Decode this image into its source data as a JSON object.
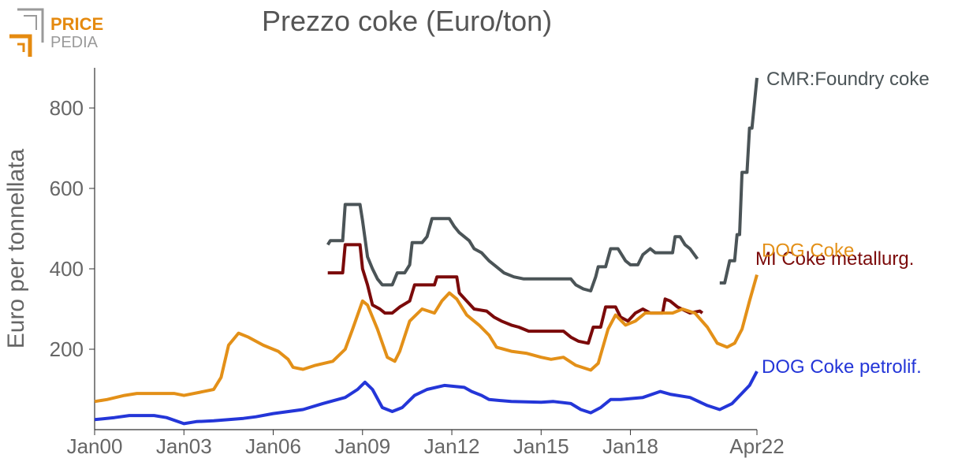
{
  "logo": {
    "line1": "PRICE",
    "line2": "PEDIA",
    "accent_color": "#e58a0f",
    "gray_color": "#9a9a9a"
  },
  "chart_data": {
    "type": "line",
    "title": "Prezzo coke (Euro/ton)",
    "xlabel": "",
    "ylabel": "Euro per tonnellata",
    "xlim": [
      "2000-01",
      "2022-04"
    ],
    "ylim": [
      0,
      900
    ],
    "x_ticks": [
      "Jan00",
      "Jan03",
      "Jan06",
      "Jan09",
      "Jan12",
      "Jan15",
      "Jan18",
      "Apr22"
    ],
    "y_ticks": [
      200,
      400,
      600,
      800
    ],
    "grid": false,
    "legend": "inline labels at series ends",
    "series": [
      {
        "name": "CMR:Foundry coke",
        "color": "#4b5457",
        "points": [
          [
            "2007-11",
            460
          ],
          [
            "2007-12",
            470
          ],
          [
            "2008-05",
            470
          ],
          [
            "2008-06",
            560
          ],
          [
            "2008-12",
            560
          ],
          [
            "2009-01",
            520
          ],
          [
            "2009-03",
            430
          ],
          [
            "2009-05",
            400
          ],
          [
            "2009-07",
            375
          ],
          [
            "2009-09",
            360
          ],
          [
            "2010-01",
            360
          ],
          [
            "2010-03",
            390
          ],
          [
            "2010-06",
            390
          ],
          [
            "2010-08",
            410
          ],
          [
            "2010-09",
            465
          ],
          [
            "2011-01",
            465
          ],
          [
            "2011-03",
            480
          ],
          [
            "2011-05",
            525
          ],
          [
            "2011-12",
            525
          ],
          [
            "2012-02",
            505
          ],
          [
            "2012-04",
            490
          ],
          [
            "2012-08",
            470
          ],
          [
            "2012-10",
            450
          ],
          [
            "2013-01",
            440
          ],
          [
            "2013-04",
            420
          ],
          [
            "2013-07",
            405
          ],
          [
            "2013-10",
            390
          ],
          [
            "2014-02",
            380
          ],
          [
            "2014-06",
            375
          ],
          [
            "2015-06",
            375
          ],
          [
            "2016-01",
            375
          ],
          [
            "2016-03",
            360
          ],
          [
            "2016-06",
            350
          ],
          [
            "2016-09",
            345
          ],
          [
            "2016-11",
            380
          ],
          [
            "2016-12",
            405
          ],
          [
            "2017-03",
            405
          ],
          [
            "2017-05",
            450
          ],
          [
            "2017-08",
            450
          ],
          [
            "2017-11",
            420
          ],
          [
            "2018-01",
            410
          ],
          [
            "2018-04",
            410
          ],
          [
            "2018-06",
            435
          ],
          [
            "2018-09",
            450
          ],
          [
            "2018-11",
            440
          ],
          [
            "2019-06",
            440
          ],
          [
            "2019-07",
            480
          ],
          [
            "2019-09",
            480
          ],
          [
            "2019-11",
            460
          ],
          [
            "2020-01",
            450
          ],
          [
            "2020-04",
            425
          ],
          null,
          [
            "2021-01",
            365
          ],
          [
            "2021-03",
            365
          ],
          [
            "2021-05",
            420
          ],
          [
            "2021-07",
            420
          ],
          [
            "2021-08",
            485
          ],
          [
            "2021-09",
            485
          ],
          [
            "2021-10",
            640
          ],
          [
            "2021-12",
            640
          ],
          [
            "2022-01",
            750
          ],
          [
            "2022-02",
            750
          ],
          [
            "2022-04",
            875
          ]
        ]
      },
      {
        "name": "MI Coke metallurg.",
        "color": "#7b0a0a",
        "points": [
          [
            "2007-11",
            390
          ],
          [
            "2008-05",
            390
          ],
          [
            "2008-06",
            460
          ],
          [
            "2008-12",
            460
          ],
          [
            "2009-01",
            400
          ],
          [
            "2009-03",
            360
          ],
          [
            "2009-05",
            310
          ],
          [
            "2009-08",
            300
          ],
          [
            "2009-10",
            290
          ],
          [
            "2010-01",
            290
          ],
          [
            "2010-04",
            305
          ],
          [
            "2010-08",
            320
          ],
          [
            "2010-10",
            360
          ],
          [
            "2011-06",
            360
          ],
          [
            "2011-07",
            380
          ],
          [
            "2012-03",
            380
          ],
          [
            "2012-04",
            340
          ],
          [
            "2012-07",
            320
          ],
          [
            "2012-10",
            300
          ],
          [
            "2013-03",
            295
          ],
          [
            "2013-06",
            280
          ],
          [
            "2013-09",
            270
          ],
          [
            "2014-01",
            260
          ],
          [
            "2014-04",
            255
          ],
          [
            "2014-08",
            245
          ],
          [
            "2015-10",
            245
          ],
          [
            "2016-01",
            230
          ],
          [
            "2016-04",
            220
          ],
          [
            "2016-08",
            215
          ],
          [
            "2016-10",
            255
          ],
          [
            "2017-01",
            255
          ],
          [
            "2017-03",
            305
          ],
          [
            "2017-07",
            305
          ],
          [
            "2017-09",
            280
          ],
          [
            "2017-12",
            270
          ],
          [
            "2018-03",
            290
          ],
          [
            "2018-06",
            300
          ],
          [
            "2018-09",
            290
          ],
          [
            "2019-02",
            290
          ],
          [
            "2019-03",
            325
          ],
          [
            "2019-05",
            320
          ],
          [
            "2019-08",
            305
          ],
          [
            "2020-01",
            290
          ],
          [
            "2020-05",
            295
          ],
          [
            "2020-06",
            290
          ]
        ]
      },
      {
        "name": "DOG Coke",
        "color": "#e39018",
        "points": [
          [
            "2000-01",
            70
          ],
          [
            "2000-06",
            75
          ],
          [
            "2001-01",
            85
          ],
          [
            "2001-06",
            90
          ],
          [
            "2002-01",
            90
          ],
          [
            "2002-09",
            90
          ],
          [
            "2003-01",
            85
          ],
          [
            "2003-09",
            95
          ],
          [
            "2004-01",
            100
          ],
          [
            "2004-04",
            130
          ],
          [
            "2004-07",
            210
          ],
          [
            "2004-11",
            240
          ],
          [
            "2005-03",
            230
          ],
          [
            "2005-09",
            210
          ],
          [
            "2006-03",
            195
          ],
          [
            "2006-07",
            175
          ],
          [
            "2006-09",
            155
          ],
          [
            "2007-01",
            150
          ],
          [
            "2007-06",
            160
          ],
          [
            "2008-01",
            170
          ],
          [
            "2008-06",
            200
          ],
          [
            "2008-09",
            250
          ],
          [
            "2009-01",
            320
          ],
          [
            "2009-03",
            310
          ],
          [
            "2009-07",
            250
          ],
          [
            "2009-11",
            180
          ],
          [
            "2010-02",
            170
          ],
          [
            "2010-04",
            195
          ],
          [
            "2010-08",
            270
          ],
          [
            "2011-01",
            300
          ],
          [
            "2011-06",
            290
          ],
          [
            "2011-09",
            320
          ],
          [
            "2011-12",
            340
          ],
          [
            "2012-03",
            325
          ],
          [
            "2012-07",
            285
          ],
          [
            "2012-12",
            260
          ],
          [
            "2013-04",
            235
          ],
          [
            "2013-07",
            205
          ],
          [
            "2014-01",
            195
          ],
          [
            "2014-07",
            190
          ],
          [
            "2015-01",
            180
          ],
          [
            "2015-05",
            175
          ],
          [
            "2015-10",
            180
          ],
          [
            "2016-03",
            160
          ],
          [
            "2016-09",
            148
          ],
          [
            "2016-12",
            165
          ],
          [
            "2017-04",
            250
          ],
          [
            "2017-07",
            285
          ],
          [
            "2017-11",
            260
          ],
          [
            "2018-03",
            270
          ],
          [
            "2018-07",
            290
          ],
          [
            "2019-06",
            290
          ],
          [
            "2019-10",
            300
          ],
          [
            "2020-03",
            290
          ],
          [
            "2020-08",
            255
          ],
          [
            "2020-12",
            215
          ],
          [
            "2021-04",
            205
          ],
          [
            "2021-07",
            215
          ],
          [
            "2021-10",
            250
          ],
          [
            "2022-01",
            320
          ],
          [
            "2022-04",
            385
          ]
        ]
      },
      {
        "name": "DOG Coke petrolif.",
        "color": "#2436d8",
        "points": [
          [
            "2000-01",
            25
          ],
          [
            "2000-09",
            30
          ],
          [
            "2001-03",
            35
          ],
          [
            "2002-01",
            35
          ],
          [
            "2002-06",
            30
          ],
          [
            "2003-01",
            15
          ],
          [
            "2003-06",
            20
          ],
          [
            "2004-01",
            22
          ],
          [
            "2005-01",
            28
          ],
          [
            "2005-06",
            32
          ],
          [
            "2006-01",
            40
          ],
          [
            "2007-01",
            50
          ],
          [
            "2007-09",
            65
          ],
          [
            "2008-06",
            80
          ],
          [
            "2008-11",
            100
          ],
          [
            "2009-02",
            118
          ],
          [
            "2009-05",
            100
          ],
          [
            "2009-09",
            55
          ],
          [
            "2010-01",
            45
          ],
          [
            "2010-05",
            55
          ],
          [
            "2010-10",
            85
          ],
          [
            "2011-03",
            100
          ],
          [
            "2011-10",
            110
          ],
          [
            "2012-06",
            105
          ],
          [
            "2012-09",
            95
          ],
          [
            "2013-01",
            85
          ],
          [
            "2013-04",
            75
          ],
          [
            "2014-01",
            70
          ],
          [
            "2015-01",
            68
          ],
          [
            "2015-06",
            70
          ],
          [
            "2016-01",
            65
          ],
          [
            "2016-05",
            50
          ],
          [
            "2016-09",
            42
          ],
          [
            "2017-01",
            55
          ],
          [
            "2017-05",
            75
          ],
          [
            "2017-09",
            75
          ],
          [
            "2018-06",
            80
          ],
          [
            "2019-01",
            95
          ],
          [
            "2019-05",
            88
          ],
          [
            "2020-01",
            80
          ],
          [
            "2020-08",
            60
          ],
          [
            "2021-01",
            50
          ],
          [
            "2021-06",
            65
          ],
          [
            "2022-01",
            110
          ],
          [
            "2022-04",
            145
          ]
        ]
      }
    ]
  }
}
